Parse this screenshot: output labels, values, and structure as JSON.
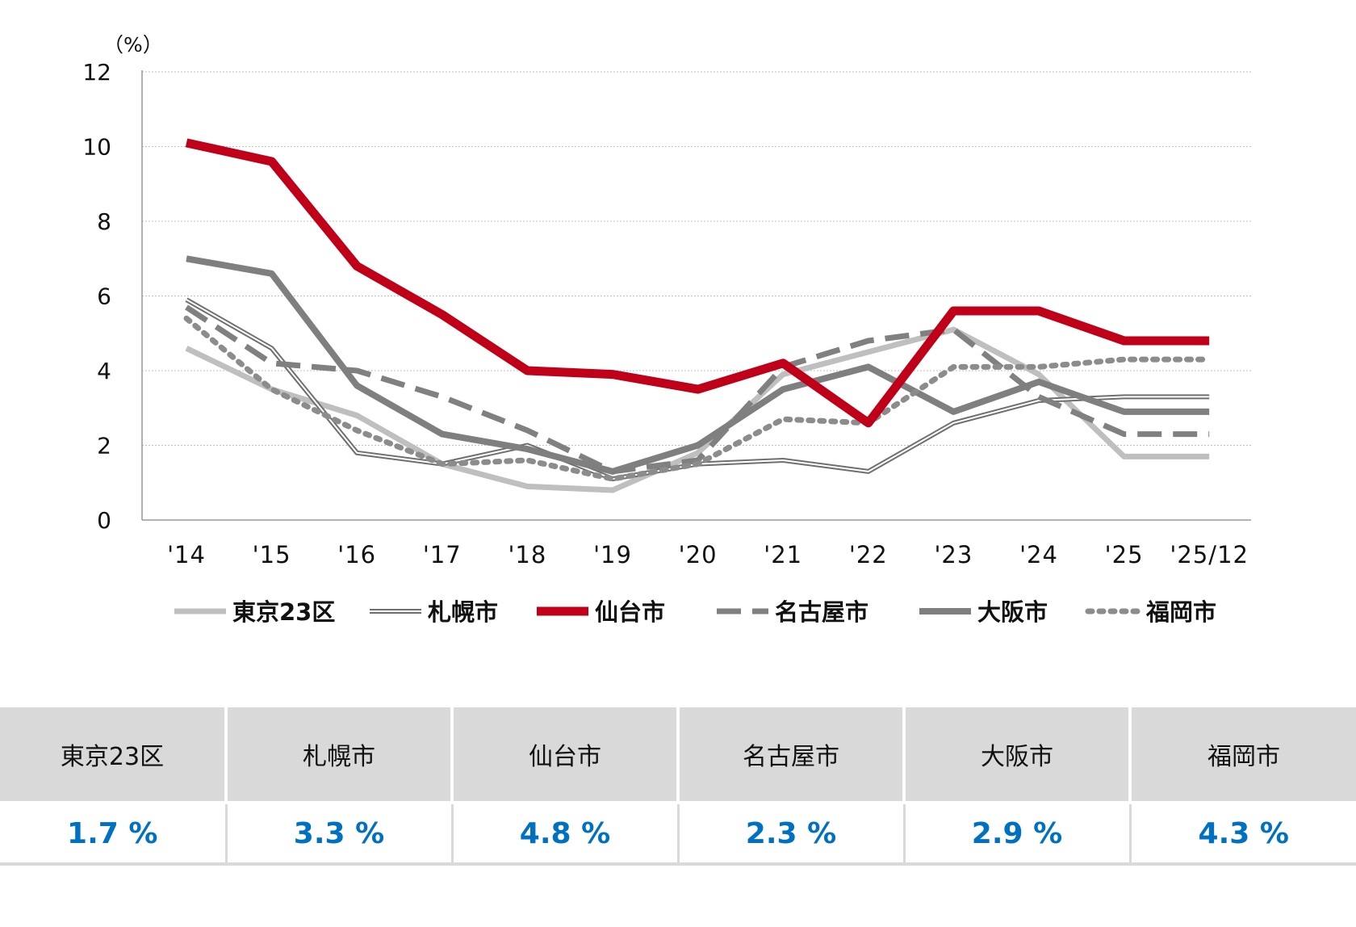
{
  "chart_data": {
    "type": "line",
    "unit_label": "（%）",
    "ylim": [
      0,
      12
    ],
    "yticks": [
      "0",
      "2",
      "4",
      "6",
      "8",
      "10",
      "12"
    ],
    "grid": true,
    "legend_position": "bottom",
    "categories": [
      "'14",
      "'15",
      "'16",
      "'17",
      "'18",
      "'19",
      "'20",
      "'21",
      "'22",
      "'23",
      "'24",
      "'25",
      "'25/12"
    ],
    "series": [
      {
        "name": "東京23区",
        "color": "#bfbfbf",
        "style": "solid",
        "values": [
          4.6,
          3.5,
          2.8,
          1.5,
          0.9,
          0.8,
          1.8,
          3.9,
          4.5,
          5.1,
          3.9,
          1.7,
          1.7
        ]
      },
      {
        "name": "札幌市",
        "color": "#6f6f6f",
        "style": "double",
        "values": [
          5.9,
          4.6,
          1.8,
          1.5,
          2.0,
          1.1,
          1.5,
          1.6,
          1.3,
          2.6,
          3.2,
          3.3,
          3.3
        ]
      },
      {
        "name": "名古屋市",
        "color": "#808080",
        "style": "dashed",
        "values": [
          5.7,
          4.2,
          4.0,
          3.3,
          2.4,
          1.3,
          1.6,
          4.1,
          4.8,
          5.1,
          3.3,
          2.3,
          2.3
        ]
      },
      {
        "name": "大阪市",
        "color": "#7f7f7f",
        "style": "solid-thick",
        "values": [
          7.0,
          6.6,
          3.6,
          2.3,
          1.9,
          1.3,
          2.0,
          3.5,
          4.1,
          2.9,
          3.7,
          2.9,
          2.9
        ]
      },
      {
        "name": "福岡市",
        "color": "#8c8c8c",
        "style": "dotted",
        "values": [
          5.4,
          3.5,
          2.4,
          1.5,
          1.6,
          1.1,
          1.5,
          2.7,
          2.6,
          4.1,
          4.1,
          4.3,
          4.3
        ]
      },
      {
        "name": "仙台市",
        "color": "#c00018",
        "style": "solid-bold",
        "values": [
          10.1,
          9.6,
          6.8,
          5.5,
          4.0,
          3.9,
          3.5,
          4.2,
          2.6,
          5.6,
          5.6,
          4.8,
          4.8
        ]
      }
    ],
    "legend_order": [
      "東京23区",
      "札幌市",
      "仙台市",
      "名古屋市",
      "大阪市",
      "福岡市"
    ]
  },
  "table": {
    "headers": [
      "東京23区",
      "札幌市",
      "仙台市",
      "名古屋市",
      "大阪市",
      "福岡市"
    ],
    "values": [
      "1.7 %",
      "3.3 %",
      "4.8 %",
      "2.3 %",
      "2.9 %",
      "4.3 %"
    ],
    "value_color": "#0070c0"
  }
}
